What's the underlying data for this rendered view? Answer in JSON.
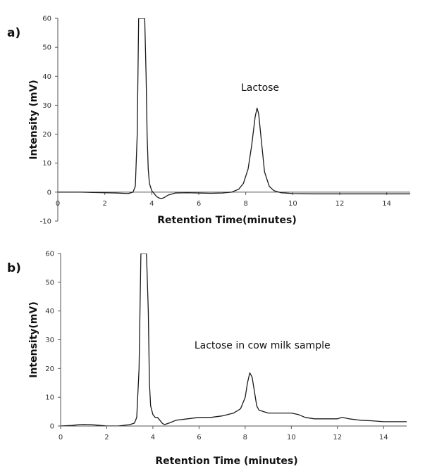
{
  "chart_data": [
    {
      "type": "line",
      "panel_label": "a)",
      "xlabel": "Retention Time(minutes)",
      "ylabel": "Intensity (mV)",
      "xlim": [
        0,
        15
      ],
      "ylim": [
        -10,
        60
      ],
      "xticks": [
        0,
        2,
        4,
        6,
        8,
        10,
        12,
        14
      ],
      "yticks": [
        -10,
        0,
        10,
        20,
        30,
        40,
        50,
        60
      ],
      "grid": false,
      "annotations": [
        {
          "text": "Lactose",
          "x": 7.8,
          "y": 35
        }
      ],
      "series": [
        {
          "x": [
            0,
            1,
            2,
            2.5,
            3,
            3.2,
            3.3,
            3.38,
            3.44,
            3.5,
            3.7,
            3.76,
            3.8,
            3.85,
            3.9,
            4.0,
            4.1,
            4.2,
            4.3,
            4.4,
            4.5,
            4.7,
            5.0,
            5.5,
            6.0,
            6.5,
            7.0,
            7.4,
            7.7,
            7.9,
            8.1,
            8.25,
            8.4,
            8.48,
            8.55,
            8.65,
            8.8,
            9.0,
            9.2,
            9.5,
            10,
            11,
            12,
            13,
            14,
            15
          ],
          "y": [
            0,
            0,
            -0.2,
            -0.3,
            -0.5,
            0,
            2,
            20,
            60,
            60,
            60,
            40,
            20,
            8,
            3,
            0.5,
            -0.5,
            -1.5,
            -2,
            -2.2,
            -2,
            -1,
            -0.3,
            -0.2,
            -0.3,
            -0.4,
            -0.3,
            0,
            1,
            3,
            8,
            16,
            26,
            29,
            27,
            19,
            7,
            2,
            0.5,
            -0.2,
            -0.5,
            -0.6,
            -0.6,
            -0.6,
            -0.6,
            -0.6
          ]
        }
      ]
    },
    {
      "type": "line",
      "panel_label": "b)",
      "xlabel": "Retention Time (minutes)",
      "ylabel": "Intensity(mV)",
      "xlim": [
        0,
        15
      ],
      "ylim": [
        0,
        60
      ],
      "xticks": [
        0,
        2,
        4,
        6,
        8,
        10,
        12,
        14
      ],
      "yticks": [
        0,
        10,
        20,
        30,
        40,
        50,
        60
      ],
      "grid": false,
      "annotations": [
        {
          "text": "Lactose in cow milk sample",
          "x": 5.8,
          "y": 27
        }
      ],
      "series": [
        {
          "x": [
            0,
            0.5,
            0.8,
            1.0,
            1.3,
            1.6,
            2.0,
            2.5,
            3.0,
            3.2,
            3.3,
            3.4,
            3.48,
            3.55,
            3.72,
            3.8,
            3.85,
            3.9,
            4.0,
            4.1,
            4.2,
            4.3,
            4.4,
            4.5,
            4.7,
            5.0,
            5.5,
            6.0,
            6.5,
            7.0,
            7.5,
            7.8,
            8.0,
            8.1,
            8.2,
            8.3,
            8.4,
            8.5,
            8.6,
            8.8,
            9.0,
            9.5,
            10.0,
            10.3,
            10.6,
            11,
            11.5,
            12.0,
            12.2,
            12.5,
            13,
            13.5,
            14,
            14.5,
            15
          ],
          "y": [
            0,
            0.2,
            0.5,
            0.6,
            0.5,
            0.3,
            0,
            0,
            0.5,
            1,
            3,
            20,
            60,
            60,
            60,
            40,
            15,
            7,
            4,
            3,
            3,
            2,
            1,
            0.5,
            1,
            2,
            2.5,
            3,
            3,
            3.5,
            4.5,
            6,
            10,
            15,
            18.5,
            17,
            12,
            7,
            5.5,
            5,
            4.5,
            4.5,
            4.5,
            4,
            3,
            2.5,
            2.5,
            2.5,
            3,
            2.5,
            2,
            1.8,
            1.5,
            1.5,
            1.5
          ]
        }
      ]
    }
  ]
}
